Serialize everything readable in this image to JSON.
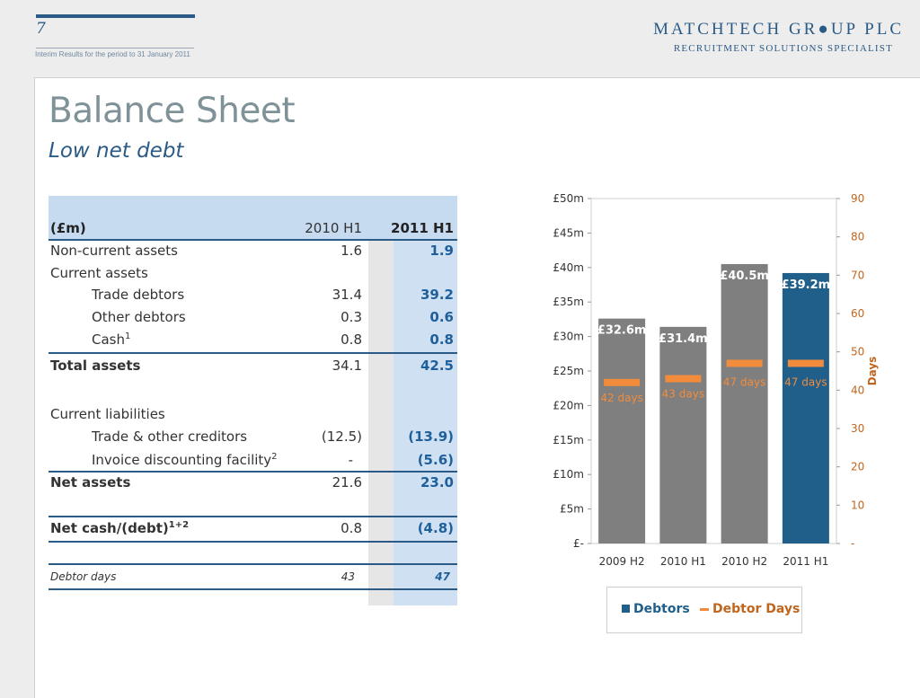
{
  "header": {
    "page_number": "7",
    "report_line": "Interim Results for the period to 31 January 2011",
    "brand_name": "MATCHTECH GR●UP PLC",
    "brand_tagline": "RECRUITMENT SOLUTIONS SPECIALIST"
  },
  "slide": {
    "title": "Balance Sheet",
    "tagline": "Low net debt"
  },
  "table": {
    "header": {
      "label": "(£m)",
      "col1": "2010 H1",
      "col2": "2011 H1"
    },
    "rows": [
      {
        "label": "Non-current assets",
        "v1": "1.6",
        "v2": "1.9"
      },
      {
        "label": "Current assets",
        "v1": "",
        "v2": ""
      },
      {
        "label": "Trade debtors",
        "v1": "31.4",
        "v2": "39.2"
      },
      {
        "label": "Other debtors",
        "v1": "0.3",
        "v2": "0.6"
      },
      {
        "label": "Cash",
        "sup": "1",
        "v1": "0.8",
        "v2": "0.8"
      },
      {
        "label": "Total assets",
        "v1": "34.1",
        "v2": "42.5"
      },
      {
        "label": "Current liabilities",
        "v1": "",
        "v2": ""
      },
      {
        "label": "Trade & other creditors",
        "v1": "(12.5)",
        "v2": "(13.9)"
      },
      {
        "label": "Invoice discounting facility",
        "sup": "2",
        "v1": "-",
        "v2": "(5.6)"
      },
      {
        "label": "Net assets",
        "v1": "21.6",
        "v2": "23.0"
      },
      {
        "label": "Net cash/(debt)",
        "sup": "1+2",
        "v1": "0.8",
        "v2": "(4.8)"
      },
      {
        "label": "Debtor days",
        "v1": "43",
        "v2": "47"
      }
    ]
  },
  "chart_data": {
    "type": "bar",
    "categories": [
      "2009 H2",
      "2010 H1",
      "2010 H2",
      "2011 H1"
    ],
    "series": [
      {
        "name": "Debtors",
        "values": [
          32.6,
          31.4,
          40.5,
          39.2
        ],
        "labels": [
          "£32.6m",
          "£31.4m",
          "£40.5m",
          "£39.2m"
        ],
        "axis": "left"
      },
      {
        "name": "Debtor Days",
        "values": [
          42,
          43,
          47,
          47
        ],
        "labels": [
          "42 days",
          "43 days",
          "47 days",
          "47 days"
        ],
        "axis": "right"
      }
    ],
    "ylim": [
      0,
      50
    ],
    "y2lim": [
      0,
      90
    ],
    "yticks": [
      "£-",
      "£5m",
      "£10m",
      "£15m",
      "£20m",
      "£25m",
      "£30m",
      "£35m",
      "£40m",
      "£45m",
      "£50m"
    ],
    "y2ticks": [
      "-",
      "10",
      "20",
      "30",
      "40",
      "50",
      "60",
      "70",
      "80",
      "90"
    ],
    "y2label": "Days",
    "legend": "bottom",
    "colors": {
      "bar_grey": "#7f7f7f",
      "bar_highlight": "#1f5f8a",
      "days_marker": "#f28c3c",
      "axis_text": "#333333",
      "days_axis_text": "#c0651e"
    }
  }
}
